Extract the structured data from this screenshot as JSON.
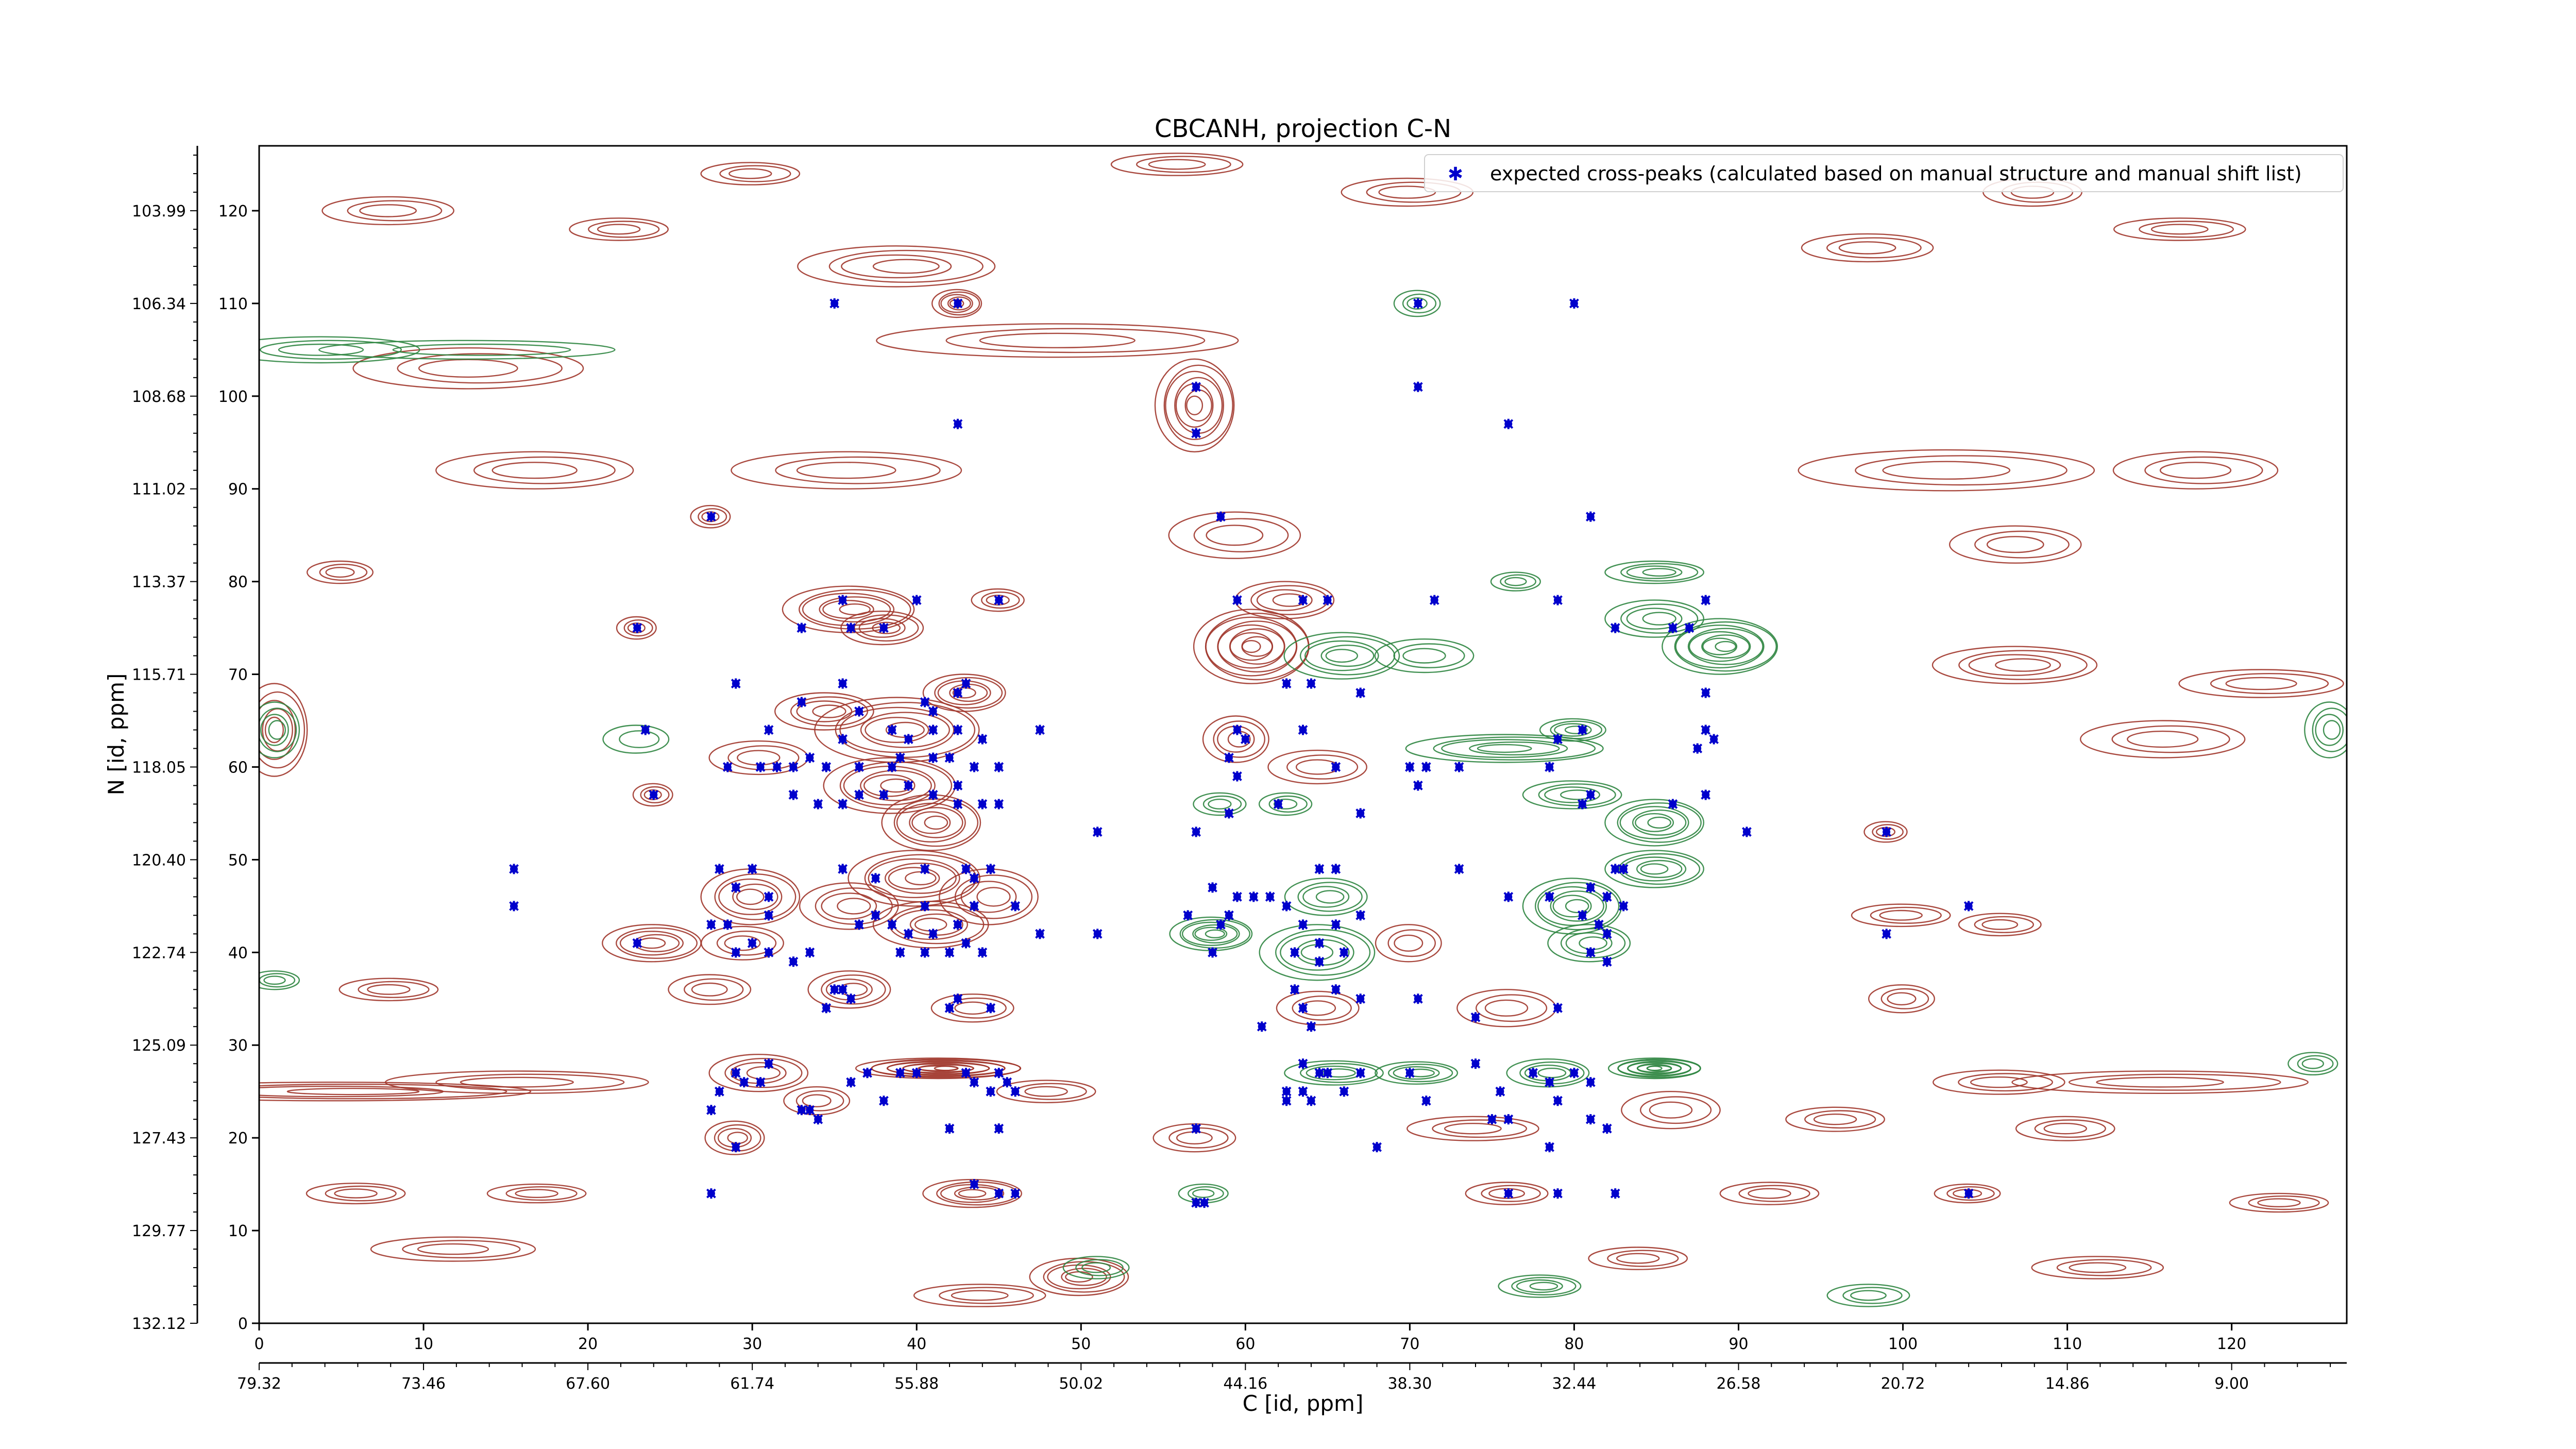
{
  "chart_data": {
    "type": "scatter",
    "title": "CBCANH, projection C-N",
    "xlabel": "C [id, ppm]",
    "ylabel": "N [id, ppm]",
    "x_index_range": [
      0,
      127
    ],
    "y_index_range": [
      0,
      127
    ],
    "x_index_ticks": [
      "0",
      "10",
      "20",
      "30",
      "40",
      "50",
      "60",
      "70",
      "80",
      "90",
      "100",
      "110",
      "120"
    ],
    "x_index_tick_values": [
      0,
      10,
      20,
      30,
      40,
      50,
      60,
      70,
      80,
      90,
      100,
      110,
      120
    ],
    "y_index_ticks": [
      "0",
      "10",
      "20",
      "30",
      "40",
      "50",
      "60",
      "70",
      "80",
      "90",
      "100",
      "110",
      "120"
    ],
    "y_index_tick_values": [
      0,
      10,
      20,
      30,
      40,
      50,
      60,
      70,
      80,
      90,
      100,
      110,
      120
    ],
    "x_ppm_ticks": [
      "79.32",
      "73.46",
      "67.60",
      "61.74",
      "55.88",
      "50.02",
      "44.16",
      "38.30",
      "32.44",
      "26.58",
      "20.72",
      "14.86",
      "9.00"
    ],
    "x_ppm_tick_positions": [
      0,
      10,
      20,
      30,
      40,
      50,
      60,
      70,
      80,
      90,
      100,
      110,
      120
    ],
    "y_ppm_ticks": [
      "132.12",
      "129.77",
      "127.43",
      "125.09",
      "122.74",
      "120.40",
      "118.05",
      "115.71",
      "113.37",
      "111.02",
      "108.68",
      "106.34",
      "103.99"
    ],
    "y_ppm_tick_positions": [
      0,
      10,
      20,
      30,
      40,
      50,
      60,
      70,
      80,
      90,
      100,
      110,
      120
    ],
    "legend": {
      "placement": "top-right",
      "label": "expected cross-peaks (calculated based on manual structure and manual shift list)",
      "marker_color": "#0000cc"
    },
    "contour_colors": {
      "positive": "#a0352a",
      "negative": "#2e8540"
    },
    "grid": false,
    "series": [
      {
        "name": "expected cross-peaks (calculated based on manual structure and manual shift list)",
        "points": [
          [
            35,
            110
          ],
          [
            42.5,
            110
          ],
          [
            70.5,
            110
          ],
          [
            80,
            110
          ],
          [
            57,
            101
          ],
          [
            57,
            96
          ],
          [
            42.5,
            97
          ],
          [
            70.5,
            101
          ],
          [
            76,
            97
          ],
          [
            27.5,
            87
          ],
          [
            58.5,
            87
          ],
          [
            81,
            87
          ],
          [
            40,
            78
          ],
          [
            35.5,
            78
          ],
          [
            45,
            78
          ],
          [
            59.5,
            78
          ],
          [
            63.5,
            78
          ],
          [
            65,
            78
          ],
          [
            71.5,
            78
          ],
          [
            79,
            78
          ],
          [
            23,
            75
          ],
          [
            33,
            75
          ],
          [
            36,
            75
          ],
          [
            38,
            75
          ],
          [
            82.5,
            75
          ],
          [
            86,
            75
          ],
          [
            87,
            75
          ],
          [
            88,
            78
          ],
          [
            29,
            69
          ],
          [
            35.5,
            69
          ],
          [
            43,
            69
          ],
          [
            42.5,
            68
          ],
          [
            62.5,
            69
          ],
          [
            64,
            69
          ],
          [
            67,
            68
          ],
          [
            33,
            67
          ],
          [
            36.5,
            66
          ],
          [
            40.5,
            67
          ],
          [
            41,
            66
          ],
          [
            88,
            68
          ],
          [
            23.5,
            64
          ],
          [
            31,
            64
          ],
          [
            35.5,
            63
          ],
          [
            38.5,
            64
          ],
          [
            39.5,
            63
          ],
          [
            41,
            64
          ],
          [
            42.5,
            64
          ],
          [
            44,
            63
          ],
          [
            47.5,
            64
          ],
          [
            59.5,
            64
          ],
          [
            60,
            63
          ],
          [
            63.5,
            64
          ],
          [
            79,
            63
          ],
          [
            80.5,
            64
          ],
          [
            88,
            64
          ],
          [
            88.5,
            63
          ],
          [
            87.5,
            62
          ],
          [
            28.5,
            60
          ],
          [
            30.5,
            60
          ],
          [
            31.5,
            60
          ],
          [
            32.5,
            60
          ],
          [
            33.5,
            61
          ],
          [
            34.5,
            60
          ],
          [
            36.5,
            60
          ],
          [
            38.5,
            60
          ],
          [
            39,
            61
          ],
          [
            41,
            61
          ],
          [
            42,
            61
          ],
          [
            43.5,
            60
          ],
          [
            45,
            60
          ],
          [
            59,
            61
          ],
          [
            59.5,
            59
          ],
          [
            65.5,
            60
          ],
          [
            70,
            60
          ],
          [
            71,
            60
          ],
          [
            73,
            60
          ],
          [
            78.5,
            60
          ],
          [
            24,
            57
          ],
          [
            32.5,
            57
          ],
          [
            34,
            56
          ],
          [
            35.5,
            56
          ],
          [
            36.5,
            57
          ],
          [
            38,
            57
          ],
          [
            39.5,
            58
          ],
          [
            41,
            57
          ],
          [
            42.5,
            58
          ],
          [
            42.5,
            56
          ],
          [
            44,
            56
          ],
          [
            45,
            56
          ],
          [
            59,
            55
          ],
          [
            62,
            56
          ],
          [
            67,
            55
          ],
          [
            70.5,
            58
          ],
          [
            80.5,
            56
          ],
          [
            81,
            57
          ],
          [
            86,
            56
          ],
          [
            88,
            57
          ],
          [
            51,
            53
          ],
          [
            57,
            53
          ],
          [
            99,
            53
          ],
          [
            90.5,
            53
          ],
          [
            15.5,
            49
          ],
          [
            28,
            49
          ],
          [
            30,
            49
          ],
          [
            35.5,
            49
          ],
          [
            37.5,
            48
          ],
          [
            40.5,
            49
          ],
          [
            43,
            49
          ],
          [
            43.5,
            48
          ],
          [
            44.5,
            49
          ],
          [
            64.5,
            49
          ],
          [
            65.5,
            49
          ],
          [
            73,
            49
          ],
          [
            82.5,
            49
          ],
          [
            83,
            49
          ],
          [
            15.5,
            45
          ],
          [
            29,
            47
          ],
          [
            31,
            46
          ],
          [
            37.5,
            44
          ],
          [
            40.5,
            45
          ],
          [
            43.5,
            45
          ],
          [
            46,
            45
          ],
          [
            58,
            47
          ],
          [
            59.5,
            46
          ],
          [
            60.5,
            46
          ],
          [
            61.5,
            46
          ],
          [
            62.5,
            45
          ],
          [
            76,
            46
          ],
          [
            78.5,
            46
          ],
          [
            81,
            47
          ],
          [
            82,
            46
          ],
          [
            83,
            45
          ],
          [
            27.5,
            43
          ],
          [
            28.5,
            43
          ],
          [
            31,
            44
          ],
          [
            36.5,
            43
          ],
          [
            38.5,
            43
          ],
          [
            39.5,
            42
          ],
          [
            41,
            42
          ],
          [
            42.5,
            43
          ],
          [
            47.5,
            42
          ],
          [
            51,
            42
          ],
          [
            56.5,
            44
          ],
          [
            58.5,
            43
          ],
          [
            59,
            44
          ],
          [
            63.5,
            43
          ],
          [
            64.5,
            41
          ],
          [
            65.5,
            43
          ],
          [
            67,
            44
          ],
          [
            80.5,
            44
          ],
          [
            81.5,
            43
          ],
          [
            82,
            42
          ],
          [
            99,
            42
          ],
          [
            104,
            45
          ],
          [
            23,
            41
          ],
          [
            29,
            40
          ],
          [
            30,
            41
          ],
          [
            31,
            40
          ],
          [
            32.5,
            39
          ],
          [
            33.5,
            40
          ],
          [
            39,
            40
          ],
          [
            40.5,
            40
          ],
          [
            42,
            40
          ],
          [
            43,
            41
          ],
          [
            44,
            40
          ],
          [
            58,
            40
          ],
          [
            63,
            40
          ],
          [
            64.5,
            39
          ],
          [
            66,
            40
          ],
          [
            81,
            40
          ],
          [
            82,
            39
          ],
          [
            35.5,
            36
          ],
          [
            36,
            35
          ],
          [
            42.5,
            35
          ],
          [
            63,
            36
          ],
          [
            65.5,
            36
          ],
          [
            67,
            35
          ],
          [
            70.5,
            35
          ],
          [
            79,
            34
          ],
          [
            34.5,
            34
          ],
          [
            35,
            36
          ],
          [
            44.5,
            34
          ],
          [
            42,
            34
          ],
          [
            63.5,
            34
          ],
          [
            64,
            32
          ],
          [
            61,
            32
          ],
          [
            74,
            33
          ],
          [
            29,
            27
          ],
          [
            31,
            28
          ],
          [
            37,
            27
          ],
          [
            39,
            27
          ],
          [
            40,
            27
          ],
          [
            43,
            27
          ],
          [
            45,
            27
          ],
          [
            45.5,
            26
          ],
          [
            46,
            25
          ],
          [
            63.5,
            28
          ],
          [
            64.5,
            27
          ],
          [
            65,
            27
          ],
          [
            67,
            27
          ],
          [
            70,
            27
          ],
          [
            74,
            28
          ],
          [
            77.5,
            27
          ],
          [
            78.5,
            26
          ],
          [
            80,
            27
          ],
          [
            81,
            26
          ],
          [
            28,
            25
          ],
          [
            29.5,
            26
          ],
          [
            30.5,
            26
          ],
          [
            36,
            26
          ],
          [
            43.5,
            26
          ],
          [
            44.5,
            25
          ],
          [
            62.5,
            25
          ],
          [
            63.5,
            25
          ],
          [
            66,
            25
          ],
          [
            71,
            24
          ],
          [
            75.5,
            25
          ],
          [
            27.5,
            23
          ],
          [
            33,
            23
          ],
          [
            33.5,
            23
          ],
          [
            34,
            22
          ],
          [
            38,
            24
          ],
          [
            62.5,
            24
          ],
          [
            64,
            24
          ],
          [
            75,
            22
          ],
          [
            76,
            22
          ],
          [
            79,
            24
          ],
          [
            81,
            22
          ],
          [
            29,
            19
          ],
          [
            42,
            21
          ],
          [
            45,
            21
          ],
          [
            57,
            21
          ],
          [
            68,
            19
          ],
          [
            78.5,
            19
          ],
          [
            82,
            21
          ],
          [
            27.5,
            14
          ],
          [
            43.5,
            15
          ],
          [
            45,
            14
          ],
          [
            46,
            14
          ],
          [
            57,
            13
          ],
          [
            57.5,
            13
          ],
          [
            76,
            14
          ],
          [
            79,
            14
          ],
          [
            82.5,
            14
          ],
          [
            104,
            14
          ]
        ]
      }
    ]
  }
}
